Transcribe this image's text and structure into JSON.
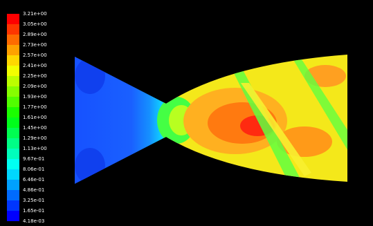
{
  "colorbar": {
    "labels": [
      "3.21e+00",
      "3.05e+00",
      "2.89e+00",
      "2.73e+00",
      "2.57e+00",
      "2.41e+00",
      "2.25e+00",
      "2.09e+00",
      "1.93e+00",
      "1.77e+00",
      "1.61e+00",
      "1.45e+00",
      "1.29e+00",
      "1.13e+00",
      "9.67e-01",
      "8.06e-01",
      "6.46e-01",
      "4.86e-01",
      "3.25e-01",
      "1.65e-01",
      "4.18e-03"
    ]
  }
}
